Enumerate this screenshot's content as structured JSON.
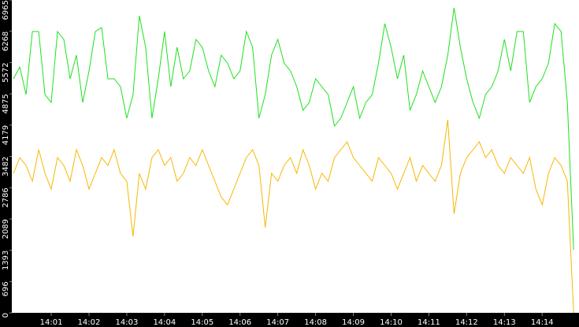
{
  "chart_data": {
    "type": "line",
    "categories": [
      null,
      null,
      null,
      null,
      null,
      null,
      "14:01",
      null,
      null,
      null,
      null,
      null,
      "14:02",
      null,
      null,
      null,
      null,
      null,
      "14:03",
      null,
      null,
      null,
      null,
      null,
      "14:04",
      null,
      null,
      null,
      null,
      null,
      "14:05",
      null,
      null,
      null,
      null,
      null,
      "14:06",
      null,
      null,
      null,
      null,
      null,
      "14:07",
      null,
      null,
      null,
      null,
      null,
      "14:08",
      null,
      null,
      null,
      null,
      null,
      "14:09",
      null,
      null,
      null,
      null,
      null,
      "14:10",
      null,
      null,
      null,
      null,
      null,
      "14:11",
      null,
      null,
      null,
      null,
      null,
      "14:12",
      null,
      null,
      null,
      null,
      null,
      "14:13",
      null,
      null,
      null,
      null,
      null,
      "14:14",
      null,
      null,
      null,
      null,
      null
    ],
    "series": [
      {
        "color": "#1ee11e",
        "values": [
          5211,
          5474,
          4860,
          6263,
          6263,
          4860,
          4684,
          6263,
          6088,
          5211,
          5737,
          4684,
          5386,
          6263,
          6351,
          5211,
          5211,
          5035,
          4333,
          4860,
          6614,
          5912,
          4333,
          5211,
          6263,
          5035,
          5912,
          5211,
          5386,
          6088,
          5912,
          5386,
          5035,
          5737,
          5562,
          5211,
          5386,
          6263,
          5912,
          4333,
          4860,
          5737,
          6088,
          5562,
          5386,
          5035,
          4509,
          4684,
          5211,
          5035,
          4860,
          4158,
          4333,
          4684,
          5035,
          4333,
          4684,
          4860,
          5562,
          6439,
          5912,
          5211,
          5737,
          4509,
          4860,
          5386,
          5035,
          4684,
          5035,
          5737,
          6790,
          5912,
          5211,
          4684,
          4333,
          4860,
          5035,
          5386,
          6088,
          5386,
          6263,
          6263,
          4684,
          5035,
          5211,
          5562,
          6439,
          6263,
          4684,
          1400
        ]
      },
      {
        "color": "#f5b800",
        "values": [
          3105,
          3456,
          3281,
          2930,
          3632,
          3105,
          2754,
          3456,
          3281,
          2930,
          3632,
          3281,
          2754,
          3105,
          3456,
          3281,
          3632,
          3105,
          2930,
          1700,
          3105,
          2754,
          3456,
          3632,
          3281,
          3456,
          2930,
          3105,
          3456,
          3281,
          3632,
          3281,
          2930,
          2579,
          2404,
          2754,
          3105,
          3456,
          3632,
          3281,
          1900,
          3105,
          2930,
          3281,
          3456,
          3105,
          3632,
          3281,
          2754,
          3105,
          2930,
          3456,
          3632,
          3807,
          3456,
          3281,
          3105,
          2930,
          3456,
          3281,
          3105,
          2754,
          3105,
          3456,
          2930,
          3281,
          3105,
          2930,
          3281,
          4300,
          2200,
          3105,
          3456,
          3632,
          3807,
          3456,
          3632,
          3281,
          3105,
          3456,
          3281,
          3105,
          3456,
          2754,
          2404,
          3105,
          3456,
          3281,
          2930,
          0
        ]
      }
    ],
    "ylim": [
      0,
      6965
    ],
    "yticks": [
      0,
      {
        "value": 696.5,
        "label": "696"
      },
      1393,
      {
        "value": 2089.5,
        "label": "2089"
      },
      2786,
      {
        "value": 3482.5,
        "label": "3482"
      },
      4179,
      {
        "value": 4875.5,
        "label": "4875"
      },
      5572,
      {
        "value": 6268.5,
        "label": "6268"
      },
      6965
    ],
    "grid": false
  }
}
